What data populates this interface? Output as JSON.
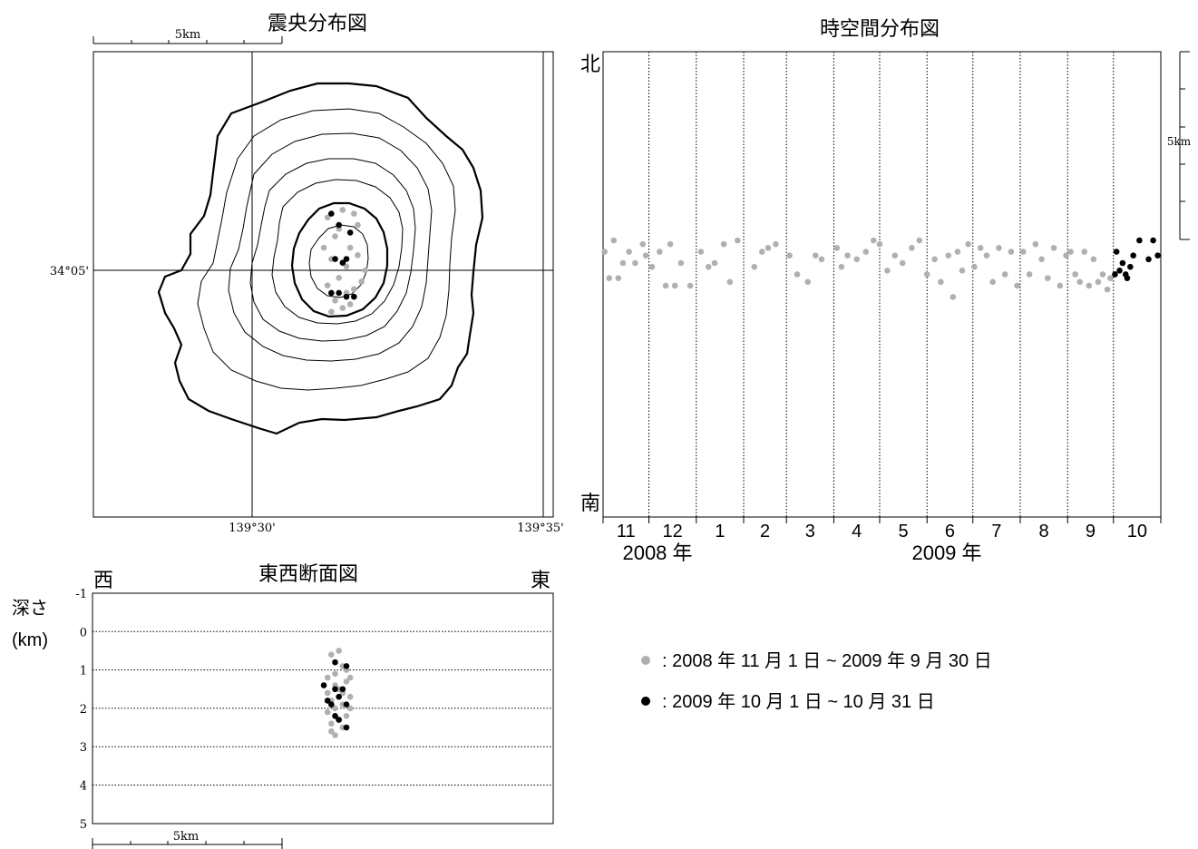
{
  "colors": {
    "past": "#b0b0b0",
    "recent": "#000000",
    "frame": "#000000"
  },
  "map": {
    "title": "震央分布図",
    "scale_label": "5km",
    "lat_label": "34°05'",
    "lon_labels": [
      "139°30'",
      "139°35'"
    ]
  },
  "timeplot": {
    "title": "時空間分布図",
    "north_label": "北",
    "south_label": "南",
    "scale_label": "5km",
    "months": [
      "11",
      "12",
      "1",
      "2",
      "3",
      "4",
      "5",
      "6",
      "7",
      "8",
      "9",
      "10"
    ],
    "year_labels": [
      "2008 年",
      "2009 年"
    ]
  },
  "section": {
    "title": "東西断面図",
    "west_label": "西",
    "east_label": "東",
    "depth_label": "深さ",
    "unit_label": "(km)",
    "depth_ticks": [
      "-1",
      "0",
      "1",
      "2",
      "3",
      "4",
      "5"
    ],
    "scale_label": "5km"
  },
  "legend": {
    "items": [
      {
        "label": ": 2008 年 11 月 1 日 ~ 2009 年 9 月 30 日",
        "color": "past"
      },
      {
        "label": ": 2009 年 10 月 1 日 ~ 10 月 31 日",
        "color": "recent"
      }
    ]
  },
  "chart_data": [
    {
      "type": "scatter",
      "title": "震央分布図",
      "xlabel": "",
      "ylabel": "",
      "series": [
        {
          "values": [
            [
              0.5,
              1.4
            ],
            [
              0.7,
              0.9
            ],
            [
              0.9,
              1.6
            ],
            [
              1.1,
              0.6
            ],
            [
              1.3,
              1.2
            ],
            [
              0.6,
              0.3
            ],
            [
              0.8,
              -0.2
            ],
            [
              1.0,
              0.1
            ],
            [
              1.2,
              -0.5
            ],
            [
              0.7,
              -0.8
            ],
            [
              0.9,
              -1.0
            ],
            [
              1.1,
              -0.9
            ],
            [
              1.4,
              -0.3
            ],
            [
              0.4,
              0.6
            ],
            [
              0.5,
              -0.4
            ],
            [
              1.3,
              0.4
            ],
            [
              1.0,
              -0.6
            ],
            [
              0.8,
              1.1
            ],
            [
              1.2,
              1.5
            ],
            [
              0.6,
              -1.1
            ],
            [
              1.5,
              0.0
            ]
          ]
        },
        {
          "values": [
            [
              0.6,
              1.5
            ],
            [
              0.8,
              1.2
            ],
            [
              0.7,
              0.3
            ],
            [
              0.9,
              0.2
            ],
            [
              1.0,
              0.3
            ],
            [
              0.8,
              -0.6
            ],
            [
              1.0,
              -0.7
            ],
            [
              1.2,
              -0.7
            ],
            [
              0.6,
              -0.6
            ],
            [
              1.1,
              1.0
            ]
          ]
        }
      ]
    },
    {
      "type": "scatter",
      "title": "時空間分布図",
      "xlabel": "",
      "ylabel": "",
      "x_range": [
        "2008-11-01",
        "2009-10-31"
      ],
      "series": [
        {
          "values": [
            [
              "2008-11-02",
              0.3
            ],
            [
              "2008-11-05",
              -0.4
            ],
            [
              "2008-11-08",
              0.6
            ],
            [
              "2008-11-11",
              -0.4
            ],
            [
              "2008-11-14",
              0.0
            ],
            [
              "2008-11-18",
              0.3
            ],
            [
              "2008-11-22",
              0.0
            ],
            [
              "2008-11-27",
              0.5
            ],
            [
              "2008-11-29",
              0.2
            ],
            [
              "2008-12-03",
              -0.1
            ],
            [
              "2008-12-08",
              0.3
            ],
            [
              "2008-12-12",
              -0.6
            ],
            [
              "2008-12-15",
              0.5
            ],
            [
              "2008-12-18",
              -0.6
            ],
            [
              "2008-12-22",
              0.0
            ],
            [
              "2008-12-28",
              -0.6
            ],
            [
              "2009-01-04",
              0.3
            ],
            [
              "2009-01-09",
              -0.1
            ],
            [
              "2009-01-13",
              0.0
            ],
            [
              "2009-01-19",
              0.5
            ],
            [
              "2009-01-23",
              -0.5
            ],
            [
              "2009-01-28",
              0.6
            ],
            [
              "2009-02-08",
              -0.1
            ],
            [
              "2009-02-13",
              0.3
            ],
            [
              "2009-02-17",
              0.4
            ],
            [
              "2009-02-22",
              0.5
            ],
            [
              "2009-03-03",
              0.2
            ],
            [
              "2009-03-08",
              -0.3
            ],
            [
              "2009-03-15",
              -0.5
            ],
            [
              "2009-03-20",
              0.2
            ],
            [
              "2009-03-24",
              0.1
            ],
            [
              "2009-04-03",
              0.4
            ],
            [
              "2009-04-06",
              -0.1
            ],
            [
              "2009-04-10",
              0.2
            ],
            [
              "2009-04-16",
              0.1
            ],
            [
              "2009-04-22",
              0.3
            ],
            [
              "2009-04-27",
              0.6
            ],
            [
              "2009-05-01",
              0.5
            ],
            [
              "2009-05-06",
              -0.2
            ],
            [
              "2009-05-11",
              0.2
            ],
            [
              "2009-05-16",
              0.0
            ],
            [
              "2009-05-22",
              0.4
            ],
            [
              "2009-05-27",
              0.6
            ],
            [
              "2009-06-01",
              -0.3
            ],
            [
              "2009-06-06",
              0.1
            ],
            [
              "2009-06-10",
              -0.5
            ],
            [
              "2009-06-15",
              0.2
            ],
            [
              "2009-06-18",
              -0.9
            ],
            [
              "2009-06-21",
              0.3
            ],
            [
              "2009-06-24",
              -0.2
            ],
            [
              "2009-06-28",
              0.5
            ],
            [
              "2009-07-02",
              -0.1
            ],
            [
              "2009-07-06",
              0.4
            ],
            [
              "2009-07-10",
              0.2
            ],
            [
              "2009-07-14",
              -0.5
            ],
            [
              "2009-07-18",
              0.4
            ],
            [
              "2009-07-22",
              -0.3
            ],
            [
              "2009-07-26",
              0.3
            ],
            [
              "2009-07-30",
              -0.6
            ],
            [
              "2009-08-03",
              0.3
            ],
            [
              "2009-08-07",
              -0.3
            ],
            [
              "2009-08-11",
              0.5
            ],
            [
              "2009-08-15",
              0.1
            ],
            [
              "2009-08-19",
              -0.4
            ],
            [
              "2009-08-23",
              0.4
            ],
            [
              "2009-08-27",
              -0.6
            ],
            [
              "2009-08-31",
              0.2
            ],
            [
              "2009-09-03",
              0.3
            ],
            [
              "2009-09-06",
              -0.3
            ],
            [
              "2009-09-09",
              -0.5
            ],
            [
              "2009-09-12",
              0.3
            ],
            [
              "2009-09-15",
              -0.6
            ],
            [
              "2009-09-18",
              0.1
            ],
            [
              "2009-09-21",
              -0.5
            ],
            [
              "2009-09-24",
              -0.3
            ],
            [
              "2009-09-27",
              -0.7
            ],
            [
              "2009-09-29",
              -0.4
            ]
          ]
        },
        {
          "values": [
            [
              "2009-10-02",
              -0.3
            ],
            [
              "2009-10-03",
              0.3
            ],
            [
              "2009-10-05",
              -0.2
            ],
            [
              "2009-10-07",
              0.0
            ],
            [
              "2009-10-09",
              -0.3
            ],
            [
              "2009-10-10",
              -0.4
            ],
            [
              "2009-10-12",
              -0.1
            ],
            [
              "2009-10-14",
              0.2
            ],
            [
              "2009-10-18",
              0.6
            ],
            [
              "2009-10-24",
              0.1
            ],
            [
              "2009-10-27",
              0.6
            ],
            [
              "2009-10-30",
              0.2
            ]
          ]
        }
      ]
    },
    {
      "type": "scatter",
      "title": "東西断面図",
      "xlabel": "",
      "ylabel": "深さ (km)",
      "ylim": [
        5,
        -1
      ],
      "series": [
        {
          "values": [
            [
              0.6,
              0.6
            ],
            [
              0.9,
              0.9
            ],
            [
              0.7,
              1.1
            ],
            [
              1.0,
              1.3
            ],
            [
              0.8,
              1.5
            ],
            [
              0.5,
              1.6
            ],
            [
              1.1,
              1.7
            ],
            [
              0.6,
              1.8
            ],
            [
              0.9,
              1.9
            ],
            [
              0.7,
              2.0
            ],
            [
              1.0,
              2.2
            ],
            [
              0.8,
              2.3
            ],
            [
              0.6,
              2.4
            ],
            [
              0.9,
              2.5
            ],
            [
              0.7,
              2.7
            ],
            [
              0.5,
              2.1
            ],
            [
              1.0,
              1.0
            ],
            [
              0.8,
              0.5
            ],
            [
              0.6,
              2.6
            ],
            [
              1.1,
              2.0
            ],
            [
              0.9,
              1.6
            ],
            [
              0.5,
              1.2
            ],
            [
              1.1,
              1.2
            ],
            [
              0.7,
              1.4
            ]
          ]
        },
        {
          "values": [
            [
              0.4,
              1.4
            ],
            [
              0.7,
              0.8
            ],
            [
              1.0,
              0.9
            ],
            [
              0.7,
              1.5
            ],
            [
              0.9,
              1.5
            ],
            [
              0.8,
              1.7
            ],
            [
              0.6,
              1.9
            ],
            [
              1.0,
              1.9
            ],
            [
              0.7,
              2.2
            ],
            [
              0.8,
              2.3
            ],
            [
              1.0,
              2.5
            ],
            [
              0.5,
              1.8
            ]
          ]
        }
      ]
    }
  ]
}
